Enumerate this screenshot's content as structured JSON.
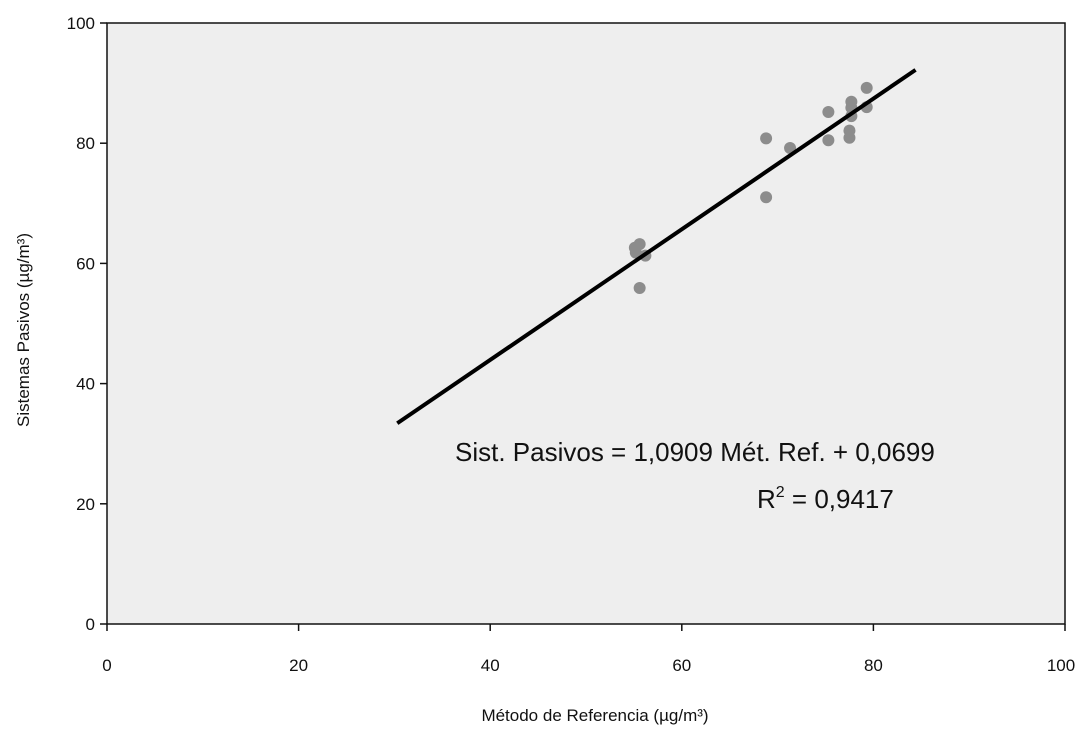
{
  "chart_data": {
    "type": "scatter",
    "xlabel": "Método de Referencia (µg/m³)",
    "ylabel": "Sistemas Pasivos (µg/m³)",
    "xlim": [
      0,
      100
    ],
    "ylim": [
      0,
      100
    ],
    "x_ticks": [
      "0",
      "20",
      "40",
      "60",
      "80",
      "100"
    ],
    "y_ticks": [
      "0",
      "20",
      "40",
      "60",
      "80",
      "100"
    ],
    "grid": false,
    "plot_background": "#eeeeee",
    "point_color": "#8c8c8c",
    "line_color": "#000000",
    "series": [
      {
        "points": [
          {
            "x": 55.6,
            "y": 63.2
          },
          {
            "x": 55.1,
            "y": 62.6
          },
          {
            "x": 55.2,
            "y": 61.8
          },
          {
            "x": 56.2,
            "y": 61.3
          },
          {
            "x": 55.6,
            "y": 55.9
          },
          {
            "x": 68.8,
            "y": 80.8
          },
          {
            "x": 68.8,
            "y": 71.0
          },
          {
            "x": 71.3,
            "y": 79.2
          },
          {
            "x": 75.3,
            "y": 85.2
          },
          {
            "x": 75.3,
            "y": 80.5
          },
          {
            "x": 77.5,
            "y": 82.1
          },
          {
            "x": 77.5,
            "y": 80.9
          },
          {
            "x": 77.7,
            "y": 86.9
          },
          {
            "x": 77.7,
            "y": 85.9
          },
          {
            "x": 77.7,
            "y": 84.5
          },
          {
            "x": 79.3,
            "y": 89.2
          },
          {
            "x": 79.3,
            "y": 86.0
          }
        ]
      }
    ],
    "trendline": {
      "x_start": 30.3,
      "y_start": 33.4,
      "x_end": 84.4,
      "y_end": 92.2
    },
    "annotations": {
      "equation": "Sist. Pasivos = 1,0909 Mét. Ref. + 0,0699",
      "r2_prefix": "R",
      "r2_sup": "2",
      "r2_suffix": " = 0,9417"
    }
  }
}
